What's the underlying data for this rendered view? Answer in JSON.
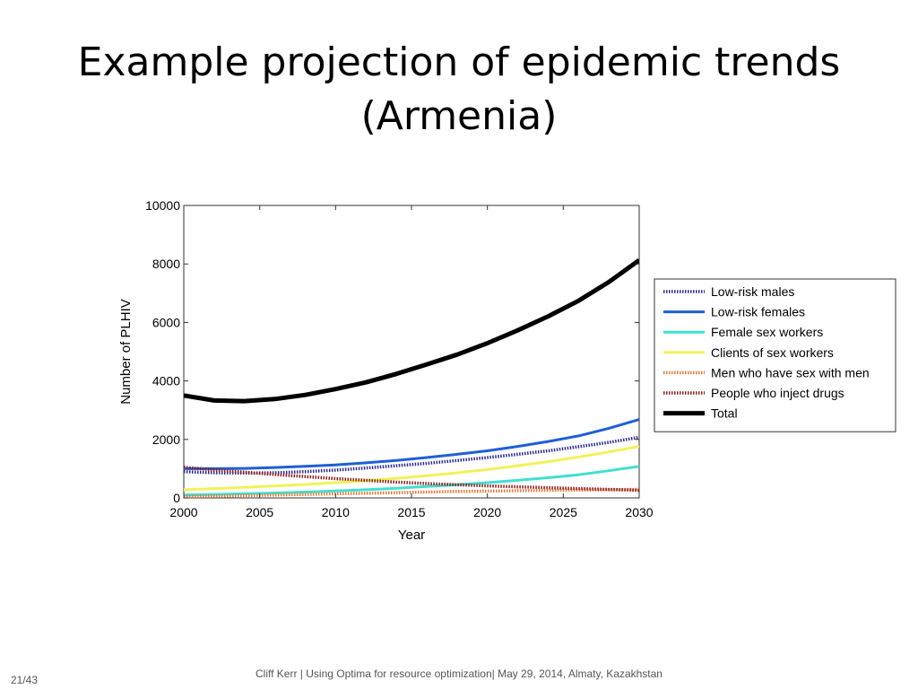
{
  "slide": {
    "title_line1": "Example projection of epidemic trends",
    "title_line2": "(Armenia)",
    "footer": "Cliff Kerr | Using Optima for resource optimization| May 29, 2014, Almaty, Kazakhstan",
    "page": "21/43"
  },
  "chart_data": {
    "type": "line",
    "title": "",
    "xlabel": "Year",
    "ylabel": "Number of PLHIV",
    "xlim": [
      2000,
      2030
    ],
    "ylim": [
      0,
      10000
    ],
    "xticks": [
      2000,
      2005,
      2010,
      2015,
      2020,
      2025,
      2030
    ],
    "yticks": [
      0,
      2000,
      4000,
      6000,
      8000,
      10000
    ],
    "grid": false,
    "legend_position": "right, outside plot",
    "x": [
      2000,
      2002,
      2004,
      2006,
      2008,
      2010,
      2012,
      2014,
      2016,
      2018,
      2020,
      2022,
      2024,
      2026,
      2028,
      2030
    ],
    "series": [
      {
        "name": "Low-risk males",
        "color": "#2b2b8f",
        "style": "dotted-thick",
        "values": [
          900,
          860,
          850,
          860,
          900,
          950,
          1020,
          1100,
          1180,
          1280,
          1380,
          1490,
          1610,
          1750,
          1900,
          2070
        ]
      },
      {
        "name": "Low-risk females",
        "color": "#1f5fd6",
        "style": "solid",
        "values": [
          1000,
          1000,
          1010,
          1040,
          1080,
          1130,
          1200,
          1280,
          1380,
          1490,
          1610,
          1760,
          1930,
          2120,
          2380,
          2680
        ]
      },
      {
        "name": "Female sex workers",
        "color": "#3fe0d0",
        "style": "solid",
        "values": [
          100,
          120,
          140,
          170,
          200,
          240,
          280,
          330,
          390,
          450,
          520,
          600,
          690,
          790,
          930,
          1080
        ]
      },
      {
        "name": "Clients of sex workers",
        "color": "#f2f25a",
        "style": "solid",
        "values": [
          280,
          320,
          360,
          410,
          460,
          520,
          590,
          670,
          760,
          860,
          970,
          1100,
          1240,
          1400,
          1570,
          1760
        ]
      },
      {
        "name": "Men who have sex with men",
        "color": "#ee7a3a",
        "style": "dotted-thick",
        "values": [
          50,
          60,
          80,
          100,
          120,
          140,
          160,
          180,
          200,
          220,
          230,
          250,
          260,
          270,
          280,
          290
        ]
      },
      {
        "name": "People who inject drugs",
        "color": "#8b1c1c",
        "style": "dotted-thick",
        "values": [
          1050,
          960,
          880,
          800,
          730,
          660,
          600,
          540,
          490,
          450,
          410,
          380,
          350,
          320,
          290,
          260
        ]
      },
      {
        "name": "Total",
        "color": "#000000",
        "style": "solid-heavy",
        "values": [
          3500,
          3330,
          3310,
          3380,
          3520,
          3720,
          3950,
          4240,
          4560,
          4900,
          5290,
          5730,
          6210,
          6740,
          7380,
          8130
        ]
      }
    ]
  }
}
